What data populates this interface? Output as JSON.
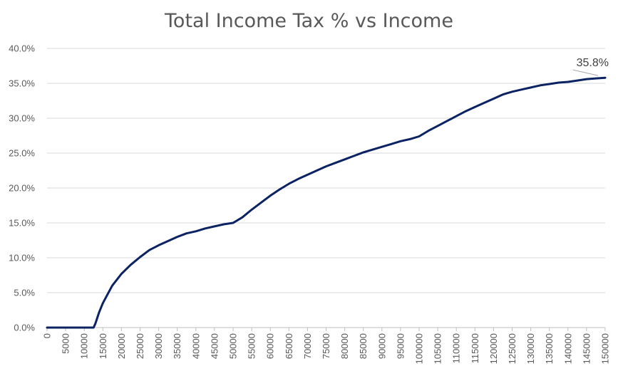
{
  "chart_data": {
    "type": "line",
    "title": "Total Income Tax % vs Income",
    "xlabel": "",
    "ylabel": "",
    "xlim": [
      0,
      150000
    ],
    "ylim": [
      0,
      40
    ],
    "y_ticks": [
      "0.0%",
      "5.0%",
      "10.0%",
      "15.0%",
      "20.0%",
      "25.0%",
      "30.0%",
      "35.0%",
      "40.0%"
    ],
    "x_ticks": [
      "0",
      "5000",
      "10000",
      "15000",
      "20000",
      "25000",
      "30000",
      "35000",
      "40000",
      "45000",
      "50000",
      "55000",
      "60000",
      "65000",
      "70000",
      "75000",
      "80000",
      "85000",
      "90000",
      "95000",
      "100000",
      "105000",
      "110000",
      "115000",
      "120000",
      "125000",
      "130000",
      "135000",
      "140000",
      "145000",
      "150000"
    ],
    "grid": true,
    "legend": "none",
    "series": [
      {
        "color": "#0b2263",
        "x": [
          0,
          5000,
          10000,
          12500,
          13000,
          14000,
          15000,
          16000,
          17500,
          20000,
          22500,
          25000,
          27500,
          30000,
          32500,
          35000,
          37500,
          40000,
          42500,
          45000,
          47500,
          50000,
          52500,
          55000,
          57500,
          60000,
          62500,
          65000,
          67500,
          70000,
          72500,
          75000,
          77500,
          80000,
          82500,
          85000,
          87500,
          90000,
          92500,
          95000,
          97500,
          100000,
          102500,
          105000,
          107500,
          110000,
          112500,
          115000,
          117500,
          120000,
          122500,
          125000,
          127500,
          130000,
          132500,
          135000,
          137500,
          140000,
          142500,
          145000,
          147500,
          150000
        ],
        "y": [
          0,
          0,
          0,
          0,
          0.6,
          2.2,
          3.5,
          4.5,
          6.0,
          7.7,
          9.0,
          10.1,
          11.1,
          11.8,
          12.4,
          13.0,
          13.5,
          13.8,
          14.2,
          14.5,
          14.8,
          15.0,
          15.8,
          16.9,
          17.9,
          18.9,
          19.8,
          20.6,
          21.3,
          21.9,
          22.5,
          23.1,
          23.6,
          24.1,
          24.6,
          25.1,
          25.5,
          25.9,
          26.3,
          26.7,
          27.0,
          27.4,
          28.2,
          28.9,
          29.6,
          30.3,
          31.0,
          31.6,
          32.2,
          32.8,
          33.4,
          33.8,
          34.1,
          34.4,
          34.7,
          34.9,
          35.1,
          35.2,
          35.4,
          35.6,
          35.7,
          35.8
        ]
      }
    ],
    "annotations": [
      {
        "text": "35.8%",
        "x": 150000,
        "y": 35.8
      }
    ]
  }
}
